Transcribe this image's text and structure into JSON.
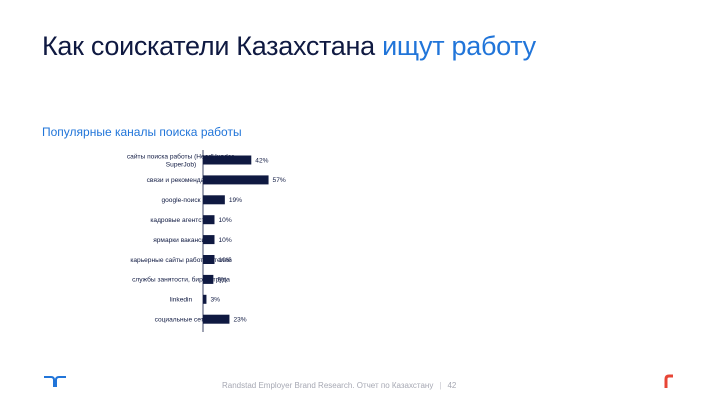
{
  "slide": {
    "title_main": "Как соискатели Казахстана ",
    "title_accent": "ищут работу",
    "subtitle": "Популярные каналы поиска работы",
    "footer_text": "Randstad Employer Brand Research. Отчет по Казахстану",
    "footer_separator": "|",
    "page_number": "42",
    "colors": {
      "navy": "#0f1941",
      "accent_blue": "#2175d9",
      "logo_red": "#e74536",
      "footer_gray": "#a6a8b3"
    },
    "icons": {
      "left_logo": "randstad-logo-icon",
      "right_logo": "r-logo-icon"
    }
  },
  "chart_data": {
    "type": "bar",
    "orientation": "horizontal",
    "title": "Популярные каналы поиска работы",
    "xlabel": "",
    "ylabel": "",
    "xlim": [
      0,
      100
    ],
    "grid": false,
    "unit": "%",
    "categories": [
      [
        "сайты поиска работы (HeadHunder,",
        "SuperJob)"
      ],
      [
        "связи и рекомендации"
      ],
      [
        "google-поиск"
      ],
      [
        "кадровые агентства"
      ],
      [
        "ярмарки вакансий"
      ],
      [
        "карьерные сайты работодателей"
      ],
      [
        "службы занятости, биржи труда"
      ],
      [
        "linkedin"
      ],
      [
        "социальные сети"
      ]
    ],
    "values": [
      42,
      57,
      19,
      10,
      10,
      10,
      9,
      3,
      23
    ],
    "value_labels": [
      "42%",
      "57%",
      "19%",
      "10%",
      "10%",
      "10%",
      "9%",
      "3%",
      "23%"
    ],
    "bar_color": "#0f1941"
  }
}
